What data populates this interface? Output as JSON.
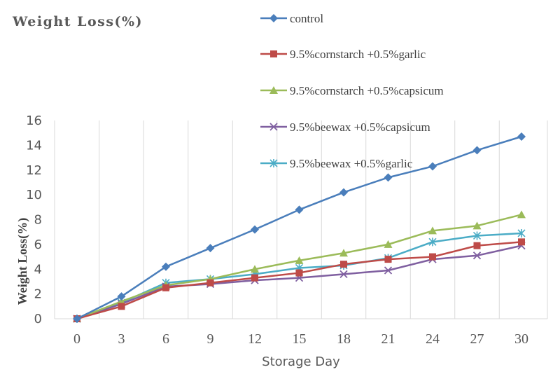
{
  "chart_data": {
    "type": "line",
    "title": "Weight Loss(%)",
    "xlabel": "Storage Day",
    "ylabel": "Weight Loss(%)",
    "x": [
      0,
      3,
      6,
      9,
      12,
      15,
      18,
      21,
      24,
      27,
      30
    ],
    "xticks": [
      "0",
      "3",
      "6",
      "9",
      "12",
      "15",
      "18",
      "21",
      "24",
      "27",
      "30"
    ],
    "ylim": [
      0,
      16
    ],
    "yticks": [
      "0",
      "2",
      "4",
      "6",
      "8",
      "10",
      "12",
      "14",
      "16"
    ],
    "grid": "vertical",
    "legend_position": "top-center",
    "series": [
      {
        "name": "control",
        "color": "#4a7ebb",
        "marker": "diamond",
        "values": [
          0,
          1.8,
          4.2,
          5.7,
          7.2,
          8.8,
          10.2,
          11.4,
          12.3,
          13.6,
          14.7
        ]
      },
      {
        "name": "9.5%cornstarch +0.5%garlic",
        "color": "#be4b48",
        "marker": "square",
        "values": [
          0,
          1.0,
          2.5,
          2.9,
          3.3,
          3.7,
          4.4,
          4.8,
          5.0,
          5.9,
          6.2
        ]
      },
      {
        "name": "9.5%cornstarch +0.5%capsicum",
        "color": "#9bbb59",
        "marker": "triangle",
        "values": [
          0,
          1.4,
          2.7,
          3.2,
          4.0,
          4.7,
          5.3,
          6.0,
          7.1,
          7.5,
          8.4
        ]
      },
      {
        "name": "9.5%beewax +0.5%capsicum",
        "color": "#7f5fa0",
        "marker": "x",
        "values": [
          0,
          1.2,
          2.6,
          2.8,
          3.1,
          3.3,
          3.6,
          3.9,
          4.8,
          5.1,
          5.9
        ]
      },
      {
        "name": "9.5%beewax +0.5%garlic",
        "color": "#4bacc6",
        "marker": "asterisk",
        "values": [
          0,
          1.3,
          2.9,
          3.2,
          3.6,
          4.1,
          4.3,
          4.9,
          6.2,
          6.7,
          6.9
        ]
      }
    ]
  }
}
